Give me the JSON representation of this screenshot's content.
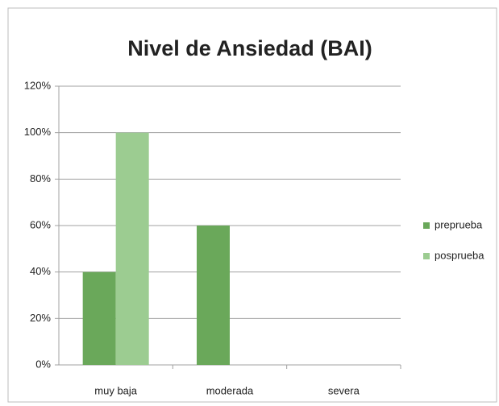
{
  "chart_data": {
    "type": "bar",
    "title": "Nivel de Ansiedad (BAI)",
    "categories": [
      "muy baja",
      "moderada",
      "severa"
    ],
    "series": [
      {
        "name": "preprueba",
        "color": "#6aa85a",
        "values": [
          40,
          60,
          0
        ]
      },
      {
        "name": "posprueba",
        "color": "#9ccc91",
        "values": [
          100,
          0,
          0
        ]
      }
    ],
    "ylim": [
      0,
      120
    ],
    "yticks": [
      {
        "value": 0,
        "label": "0%"
      },
      {
        "value": 20,
        "label": "20%"
      },
      {
        "value": 40,
        "label": "40%"
      },
      {
        "value": 60,
        "label": "60%"
      },
      {
        "value": 80,
        "label": "80%"
      },
      {
        "value": 100,
        "label": "100%"
      },
      {
        "value": 120,
        "label": "120%"
      }
    ],
    "grid": true,
    "legend": "right"
  }
}
